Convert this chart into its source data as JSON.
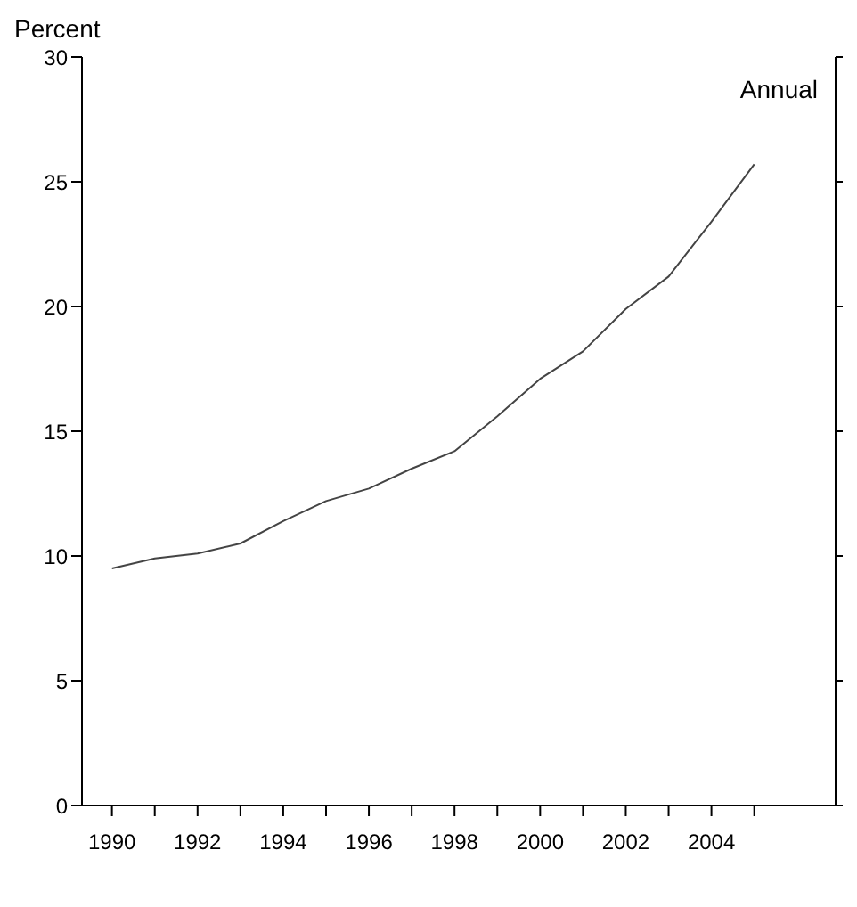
{
  "chart_data": {
    "type": "line",
    "ylabel": "Percent",
    "annotations": [
      "Annual"
    ],
    "x": [
      1990,
      1991,
      1992,
      1993,
      1994,
      1995,
      1996,
      1997,
      1998,
      1999,
      2000,
      2001,
      2002,
      2003,
      2004,
      2005
    ],
    "series": [
      {
        "color": "#444444",
        "values": [
          9.5,
          9.9,
          10.1,
          10.5,
          11.4,
          12.2,
          12.7,
          13.5,
          14.2,
          15.6,
          17.1,
          18.2,
          19.9,
          21.2,
          23.4,
          25.7
        ]
      }
    ],
    "xlim": [
      1989.3,
      2006.9
    ],
    "xticks": [
      1990,
      {
        "value": 1991,
        "label": null
      },
      1992,
      {
        "value": 1993,
        "label": null
      },
      1994,
      {
        "value": 1995,
        "label": null
      },
      1996,
      {
        "value": 1997,
        "label": null
      },
      1998,
      {
        "value": 1999,
        "label": null
      },
      2000,
      {
        "value": 2001,
        "label": null
      },
      2002,
      {
        "value": 2003,
        "label": null
      },
      2004,
      {
        "value": 2005,
        "label": null
      }
    ],
    "ylim": [
      0,
      30
    ],
    "yticks": [
      0,
      5,
      10,
      15,
      20,
      25,
      30
    ],
    "grid": false,
    "legend": false,
    "marker": "none",
    "line_style": "solid"
  }
}
